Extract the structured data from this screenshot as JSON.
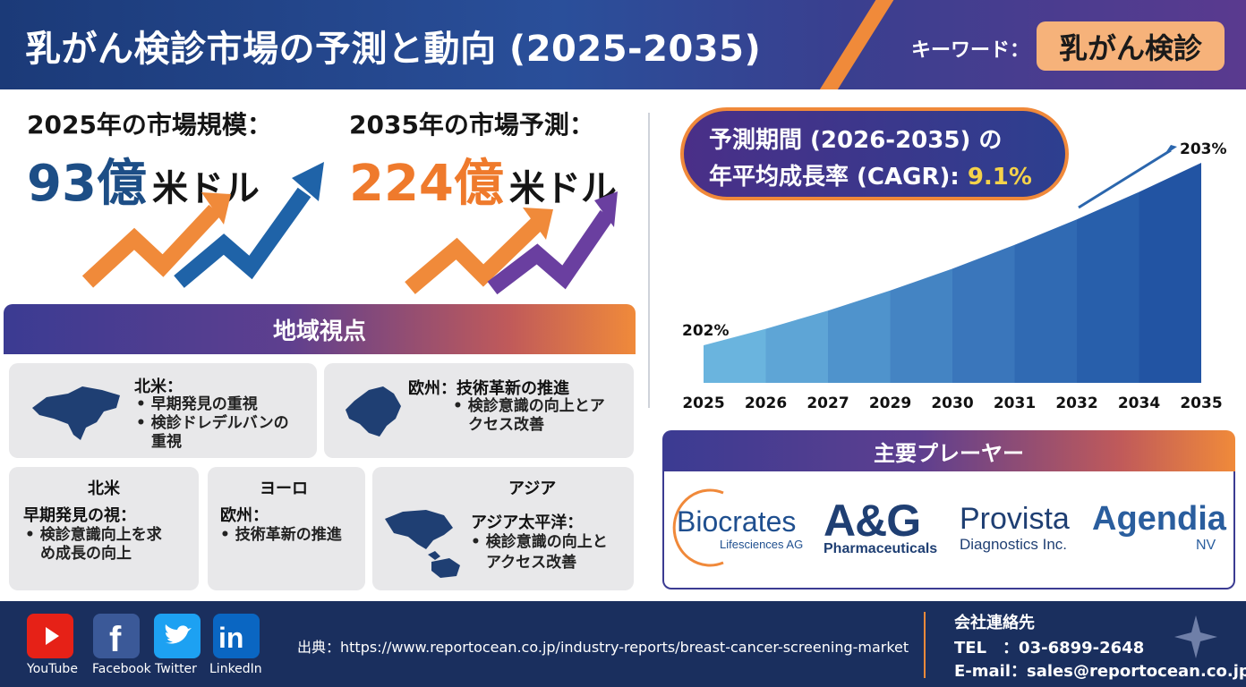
{
  "header": {
    "title": "乳がん検診市場の予測と動向 (2025-2035)",
    "keyword_label": "キーワード：",
    "keyword": "乳がん検診"
  },
  "market": {
    "y2025_label": "2025年の市場規模：",
    "y2025_value": "93億",
    "y2035_label": "2035年の市場予測：",
    "y2035_value": "224億",
    "unit": "米ドル"
  },
  "cagr": {
    "line1": "予測期間 (2026-2035) の",
    "line2_prefix": "年平均成長率 (CAGR): ",
    "value": "9.1%"
  },
  "chart_data": {
    "type": "area",
    "x": [
      "2025",
      "2026",
      "2027",
      "2029",
      "2030",
      "2031",
      "2032",
      "2034",
      "2035"
    ],
    "values": [
      0.0,
      0.09,
      0.19,
      0.3,
      0.42,
      0.55,
      0.69,
      0.84,
      1.0
    ],
    "start_label": "202%",
    "end_label": "203%",
    "colors": [
      "#6ab4de",
      "#5ea5d6",
      "#4f93cc",
      "#4484c3",
      "#3a76bb",
      "#306ab3",
      "#285fab",
      "#2254a3"
    ]
  },
  "regions": {
    "title": "地域視点",
    "cards": [
      {
        "title": "北米：",
        "bullets": [
          "• 早期発見の重視",
          "• 検診ドレデルバンの",
          "　重視"
        ]
      },
      {
        "title": "欧州：技術革新の推進",
        "bullets": [
          "• 検診意識の向上とア",
          "　クセス改善"
        ]
      },
      {
        "title": "北米",
        "subtitle": "早期発見の視：",
        "bullets": [
          "• 検診意識向上を求",
          "　め成長の向上"
        ]
      },
      {
        "title": "ヨーロ",
        "subtitle": "欧州：",
        "bullets": [
          "• 技術革新の推進"
        ]
      },
      {
        "title": "アジア",
        "subtitle": "アジア太平洋：",
        "bullets": [
          "• 検診意識の向上と",
          "　アクセス改善"
        ]
      }
    ]
  },
  "players": {
    "title": "主要プレーヤー",
    "list": [
      {
        "name": "Biocrates",
        "sub": "Lifesciences AG"
      },
      {
        "name": "A&G",
        "sub": "Pharmaceuticals"
      },
      {
        "name": "Provista",
        "sub": "Diagnostics Inc."
      },
      {
        "name": "Agendia",
        "sub": "NV"
      }
    ]
  },
  "footer": {
    "social": [
      {
        "label": "YouTube",
        "icon": "youtube-icon",
        "color": "#e62117"
      },
      {
        "label": "Facebook",
        "icon": "facebook-icon",
        "color": "#3b5998"
      },
      {
        "label": "Twitter",
        "icon": "twitter-icon",
        "color": "#1da1f2"
      },
      {
        "label": "LinkedIn",
        "icon": "linkedin-icon",
        "color": "#0a66c2"
      }
    ],
    "source": "出典：https://www.reportocean.co.jp/industry-reports/breast-cancer-screening-market",
    "contact_title": "会社連絡先",
    "tel": "TEL　：03-6899-2648",
    "email": "E-mail：sales@reportocean.co.jp"
  }
}
